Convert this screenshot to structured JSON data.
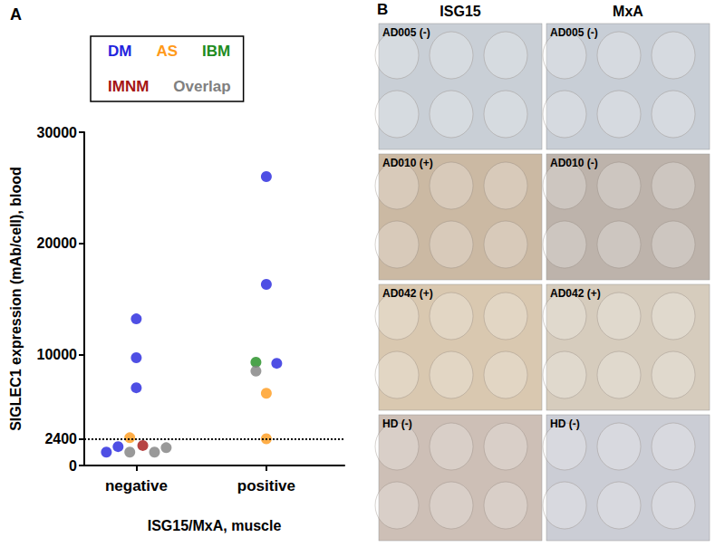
{
  "chart_data": {
    "type": "scatter",
    "title": "A",
    "x_label": "ISG15/MxA, muscle",
    "y_label": "SIGLEC1 expression (mAb/cell), blood",
    "xlim": [
      0.6,
      2.6
    ],
    "xticks": [
      {
        "value": 1,
        "label": "negative"
      },
      {
        "value": 2,
        "label": "positive"
      }
    ],
    "ylim": [
      0,
      30000
    ],
    "yticks": [
      0,
      2400,
      10000,
      20000,
      30000
    ],
    "grid": false,
    "legend": "top",
    "marker": "circle",
    "reference_lines": [
      {
        "value": 2400,
        "line_style": "dotted"
      }
    ],
    "series": [
      {
        "name": "DM",
        "color": "#2323dd",
        "x": [
          0.77,
          0.86,
          1.0,
          1.0,
          1.0,
          2.0,
          2.0,
          2.08
        ],
        "values": [
          1200,
          1700,
          13200,
          9700,
          7000,
          26000,
          16300,
          9200
        ]
      },
      {
        "name": "AS",
        "color": "#ff9a1a",
        "x": [
          0.95,
          2.0,
          2.0
        ],
        "values": [
          2500,
          6500,
          2400
        ]
      },
      {
        "name": "IBM",
        "color": "#1e8c1e",
        "x": [
          1.92
        ],
        "values": [
          9300
        ]
      },
      {
        "name": "IMNM",
        "color": "#a51414",
        "x": [
          1.05
        ],
        "values": [
          1800
        ]
      },
      {
        "name": "Overlap",
        "color": "#808080",
        "x": [
          0.95,
          1.14,
          1.23,
          1.92
        ],
        "values": [
          1200,
          1200,
          1600,
          8500
        ]
      }
    ]
  },
  "panel_b": {
    "label": "B",
    "columns": [
      "ISG15",
      "MxA"
    ],
    "rows": [
      [
        "AD005 (-)",
        "AD005 (-)"
      ],
      [
        "AD010 (+)",
        "AD010 (-)"
      ],
      [
        "AD042 (+)",
        "AD042 (+)"
      ],
      [
        "HD (-)",
        "HD (-)"
      ]
    ]
  }
}
